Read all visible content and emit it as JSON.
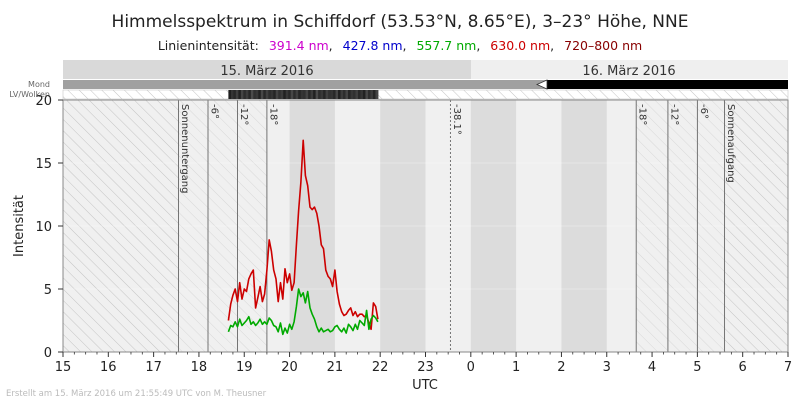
{
  "chart_data": {
    "type": "line",
    "title": "Himmelsspektrum in Schiffdorf (53.53°N, 8.65°E), 3–23° Höhe, NNE",
    "legend": {
      "prefix": "Linienintensität:",
      "entries": [
        {
          "label": "391.4 nm",
          "color": "#cc00cc"
        },
        {
          "label": "427.8 nm",
          "color": "#0000cc"
        },
        {
          "label": "557.7 nm",
          "color": "#00aa00"
        },
        {
          "label": "630.0 nm",
          "color": "#cc0000"
        },
        {
          "label": "720–800 nm",
          "color": "#880000"
        }
      ]
    },
    "xlabel": "UTC",
    "ylabel": "Intensität",
    "x_hour_range": [
      15,
      31
    ],
    "ylim": [
      0,
      20
    ],
    "x_tick_labels": [
      "15",
      "16",
      "17",
      "18",
      "19",
      "20",
      "21",
      "22",
      "23",
      "0",
      "1",
      "2",
      "3",
      "4",
      "5",
      "6",
      "7"
    ],
    "y_tick_labels": [
      "0",
      "5",
      "10",
      "15",
      "20"
    ],
    "dates": [
      "15. März 2016",
      "16. März 2016"
    ],
    "row_labels": {
      "moon": "Mond",
      "clouds": "LV/Wolken"
    },
    "sun_events": [
      {
        "label": "Sonnenuntergang",
        "hour": 17.55,
        "style": "solid"
      },
      {
        "label": "-6°",
        "hour": 18.2,
        "style": "solid"
      },
      {
        "label": "-12°",
        "hour": 18.85,
        "style": "solid"
      },
      {
        "label": "-18°",
        "hour": 19.5,
        "style": "solid"
      },
      {
        "label": "-38.1°",
        "hour": 23.55,
        "style": "dashed"
      },
      {
        "label": "-18°",
        "hour": 27.65,
        "style": "solid"
      },
      {
        "label": "-12°",
        "hour": 28.35,
        "style": "solid"
      },
      {
        "label": "-6°",
        "hour": 29.0,
        "style": "solid"
      },
      {
        "label": "Sonnenaufgang",
        "hour": 29.6,
        "style": "solid"
      }
    ],
    "series": [
      {
        "color": "#cc0000",
        "x": [
          18.65,
          18.7,
          18.75,
          18.8,
          18.85,
          18.9,
          18.95,
          19.0,
          19.05,
          19.1,
          19.15,
          19.2,
          19.25,
          19.3,
          19.35,
          19.4,
          19.45,
          19.5,
          19.55,
          19.6,
          19.65,
          19.7,
          19.75,
          19.8,
          19.85,
          19.9,
          19.95,
          20.0,
          20.05,
          20.1,
          20.15,
          20.2,
          20.25,
          20.3,
          20.35,
          20.4,
          20.45,
          20.5,
          20.55,
          20.6,
          20.65,
          20.7,
          20.75,
          20.8,
          20.85,
          20.9,
          20.95,
          21.0,
          21.05,
          21.1,
          21.15,
          21.2,
          21.25,
          21.3,
          21.35,
          21.4,
          21.45,
          21.5,
          21.55,
          21.6,
          21.65,
          21.7,
          21.75,
          21.8,
          21.85,
          21.9,
          21.95
        ],
        "values": [
          2.5,
          3.8,
          4.5,
          5.0,
          4.0,
          5.5,
          4.2,
          5.0,
          4.8,
          5.8,
          6.2,
          6.5,
          3.5,
          4.3,
          5.2,
          4.0,
          4.6,
          6.5,
          8.9,
          8.0,
          6.5,
          5.8,
          4.0,
          5.5,
          4.2,
          6.6,
          5.5,
          6.2,
          4.9,
          5.5,
          8.5,
          11.2,
          13.5,
          16.8,
          14.0,
          13.2,
          11.5,
          11.3,
          11.5,
          11.0,
          10.0,
          8.5,
          8.2,
          6.5,
          6.0,
          5.8,
          5.2,
          6.5,
          4.8,
          3.8,
          3.2,
          2.9,
          3.0,
          3.3,
          3.5,
          2.9,
          3.2,
          2.8,
          3.0,
          3.0,
          2.8,
          2.9,
          2.3,
          1.8,
          3.9,
          3.6,
          2.6
        ]
      },
      {
        "color": "#00aa00",
        "x": [
          18.65,
          18.7,
          18.75,
          18.8,
          18.85,
          18.9,
          18.95,
          19.0,
          19.05,
          19.1,
          19.15,
          19.2,
          19.25,
          19.3,
          19.35,
          19.4,
          19.45,
          19.5,
          19.55,
          19.6,
          19.65,
          19.7,
          19.75,
          19.8,
          19.85,
          19.9,
          19.95,
          20.0,
          20.05,
          20.1,
          20.15,
          20.2,
          20.25,
          20.3,
          20.35,
          20.4,
          20.45,
          20.5,
          20.55,
          20.6,
          20.65,
          20.7,
          20.75,
          20.8,
          20.85,
          20.9,
          20.95,
          21.0,
          21.05,
          21.1,
          21.15,
          21.2,
          21.25,
          21.3,
          21.35,
          21.4,
          21.45,
          21.5,
          21.55,
          21.6,
          21.65,
          21.7,
          21.75,
          21.8,
          21.85,
          21.9,
          21.95
        ],
        "values": [
          1.6,
          2.1,
          2.0,
          2.4,
          2.0,
          2.6,
          2.1,
          2.3,
          2.5,
          2.8,
          2.2,
          2.4,
          2.1,
          2.3,
          2.6,
          2.2,
          2.4,
          2.2,
          2.7,
          2.5,
          2.1,
          2.0,
          1.6,
          2.3,
          1.4,
          1.9,
          1.5,
          2.2,
          1.8,
          2.4,
          3.6,
          5.0,
          4.4,
          4.7,
          3.9,
          4.8,
          3.5,
          3.0,
          2.6,
          2.0,
          1.6,
          1.9,
          1.6,
          1.7,
          1.8,
          1.6,
          1.7,
          2.0,
          2.1,
          1.8,
          1.6,
          1.9,
          1.5,
          2.2,
          2.0,
          1.7,
          2.2,
          1.8,
          2.5,
          2.3,
          2.1,
          3.3,
          1.8,
          2.6,
          2.9,
          2.7,
          2.4
        ]
      }
    ],
    "clouds_brightness": [
      40,
      70,
      55,
      85,
      45,
      90,
      60,
      80,
      50,
      100,
      65,
      75,
      45,
      95,
      55,
      85,
      60,
      70,
      50,
      90,
      65,
      80,
      45,
      75,
      55,
      95,
      60,
      85,
      50,
      70,
      65,
      90,
      55,
      80,
      45,
      100,
      60,
      75,
      50,
      85,
      65,
      70,
      55,
      95,
      45,
      80,
      60,
      90,
      50,
      75,
      65,
      85,
      55,
      70,
      45,
      95,
      60,
      80,
      50,
      90
    ]
  },
  "footer": "Erstellt am 15. März 2016 um 21:55:49 UTC von M. Theusner"
}
